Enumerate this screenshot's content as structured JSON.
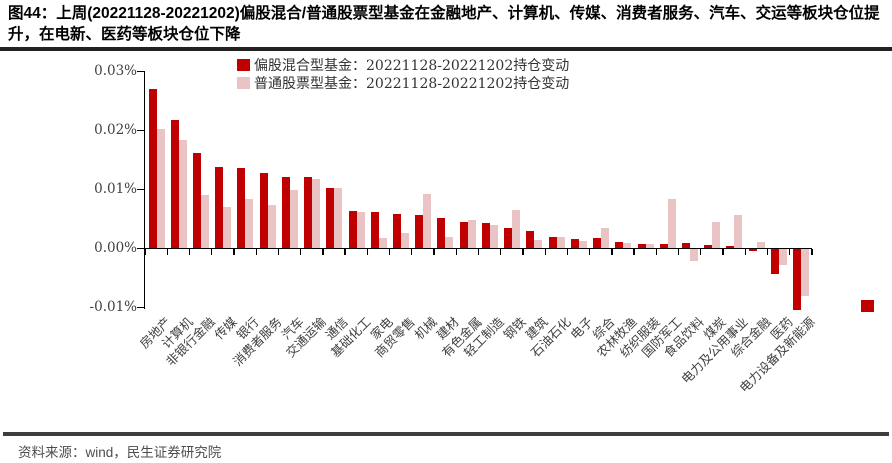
{
  "header": {
    "title": "图44：上周(20221128-20221202)偏股混合/普通股票型基金在金融地产、计算机、传媒、消费者服务、汽车、交运等板块仓位提升，在电新、医药等板块仓位下降"
  },
  "footer": {
    "source": "资料来源：wind，民生证券研究院"
  },
  "colors": {
    "dark_red": "#C00000",
    "light_pink": "#EAC3C5",
    "axis_black": "#000000",
    "label_gray": "#404040",
    "marker_red": "#C00000"
  },
  "chart_data": {
    "type": "bar",
    "title": "",
    "xlabel": "",
    "ylabel": "",
    "unit": "%",
    "ylim": [
      -0.01,
      0.03
    ],
    "grid": false,
    "legend_position": "top-center",
    "yticks": [
      "0.03%",
      "0.02%",
      "0.01%",
      "0.00%",
      "-0.01%"
    ],
    "ytick_values": [
      0.03,
      0.02,
      0.01,
      0.0,
      -0.01
    ],
    "categories": [
      "房地产",
      "计算机",
      "非银行金融",
      "传媒",
      "银行",
      "消费者服务",
      "汽车",
      "交通运输",
      "通信",
      "基础化工",
      "家电",
      "商贸零售",
      "机械",
      "建材",
      "有色金属",
      "轻工制造",
      "钢铁",
      "建筑",
      "石油石化",
      "电子",
      "综合",
      "农林牧渔",
      "纺织服装",
      "国防军工",
      "食品饮料",
      "煤炭",
      "电力及公用事业",
      "综合金融",
      "医药",
      "电力设备及新能源"
    ],
    "series": [
      {
        "name": "偏股混合型基金：20221128-20221202持仓变动",
        "color": "#C00000",
        "values": [
          0.027,
          0.0217,
          0.0162,
          0.0138,
          0.0136,
          0.0128,
          0.0122,
          0.0121,
          0.0103,
          0.0063,
          0.0062,
          0.0058,
          0.0056,
          0.0051,
          0.0045,
          0.0044,
          0.0034,
          0.0029,
          0.0019,
          0.0016,
          0.0017,
          0.0011,
          0.0007,
          0.0008,
          0.0009,
          0.0006,
          0.0005,
          -0.0003,
          -0.0041,
          -0.0103
        ]
      },
      {
        "name": "普通股票型基金：20221128-20221202持仓变动",
        "color": "#EAC3C5",
        "values": [
          0.0203,
          0.0184,
          0.0091,
          0.007,
          0.0084,
          0.0073,
          0.0099,
          0.0117,
          0.0102,
          0.0062,
          0.0018,
          0.0027,
          0.0092,
          0.0019,
          0.0049,
          0.004,
          0.0065,
          0.0014,
          0.002,
          0.0012,
          0.0034,
          0.001,
          0.0008,
          0.0084,
          -0.0019,
          0.0045,
          0.0057,
          0.0011,
          -0.0027,
          -0.0079
        ]
      }
    ]
  }
}
